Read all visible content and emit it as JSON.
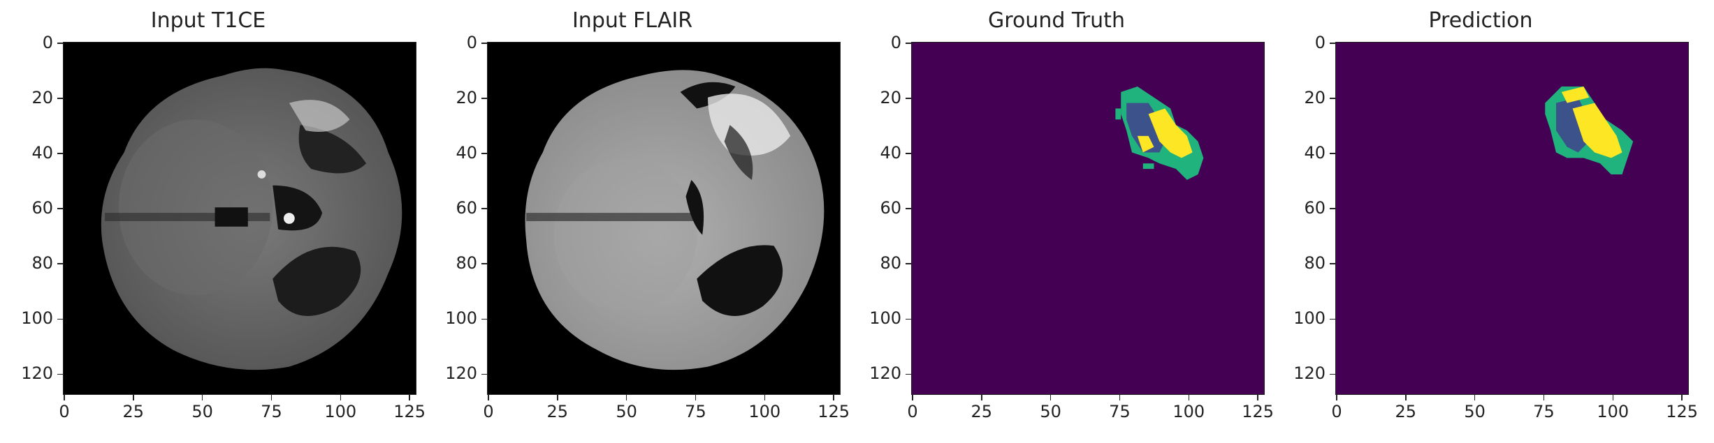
{
  "figure": {
    "panels": [
      {
        "title": "Input T1CE",
        "kind": "mri-t1ce"
      },
      {
        "title": "Input FLAIR",
        "kind": "mri-flair"
      },
      {
        "title": "Ground Truth",
        "kind": "segmentation"
      },
      {
        "title": "Prediction",
        "kind": "segmentation"
      }
    ],
    "y_ticks": [
      "0",
      "20",
      "40",
      "60",
      "80",
      "100",
      "120"
    ],
    "x_ticks": [
      "0",
      "25",
      "50",
      "75",
      "100",
      "125"
    ],
    "colors": {
      "seg_background": "#440154",
      "seg_class_1": "#3b528b",
      "seg_class_2": "#21918c",
      "seg_class_3": "#fde725",
      "seg_green": "#20b37e"
    }
  }
}
